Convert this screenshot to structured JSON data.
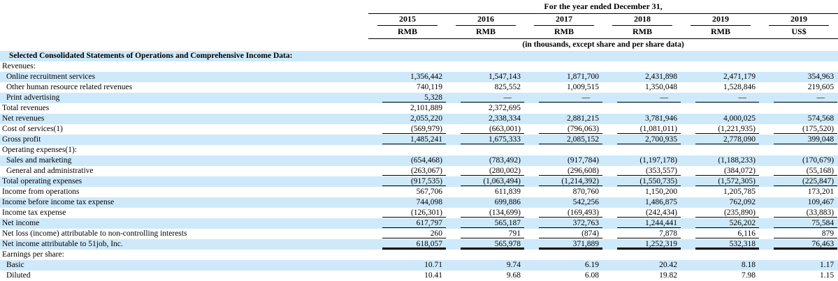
{
  "header": {
    "spanner": "For the year ended December 31,",
    "note": "(in thousands, except share and per share data)",
    "years": [
      "2015",
      "2016",
      "2017",
      "2018",
      "2019",
      "2019"
    ],
    "currencies": [
      "RMB",
      "RMB",
      "RMB",
      "RMB",
      "RMB",
      "US$"
    ]
  },
  "colors": {
    "row_highlight": "#cee9fa",
    "rule": "#000000"
  },
  "rows": [
    {
      "label": "Selected Consolidated Statements of Operations and Comprehensive Income Data:",
      "section": true,
      "indent": 0,
      "hl": true,
      "rule": "none",
      "values": [
        "",
        "",
        "",
        "",
        "",
        ""
      ]
    },
    {
      "label": "Revenues:",
      "section": false,
      "indent": 0,
      "hl": false,
      "rule": "none",
      "values": [
        "",
        "",
        "",
        "",
        "",
        ""
      ]
    },
    {
      "label": "Online recruitment services",
      "section": false,
      "indent": 1,
      "hl": true,
      "rule": "none",
      "values": [
        "1,356,442",
        "1,547,143",
        "1,871,700",
        "2,431,898",
        "2,471,179",
        "354,963"
      ]
    },
    {
      "label": "Other human resource related revenues",
      "section": false,
      "indent": 1,
      "hl": false,
      "rule": "none",
      "values": [
        "740,119",
        "825,552",
        "1,009,515",
        "1,350,048",
        "1,528,846",
        "219,605"
      ]
    },
    {
      "label": "Print advertising",
      "section": false,
      "indent": 1,
      "hl": true,
      "rule": "single",
      "values": [
        "5,328",
        "—",
        "—",
        "—",
        "—",
        "—"
      ]
    },
    {
      "label": "Total revenues",
      "section": false,
      "indent": 0,
      "hl": false,
      "rule": "none",
      "values": [
        "2,101,889",
        "2,372,695",
        "",
        "",
        "",
        ""
      ]
    },
    {
      "label": "Net revenues",
      "section": false,
      "indent": 0,
      "hl": true,
      "rule": "none",
      "values": [
        "2,055,220",
        "2,338,334",
        "2,881,215",
        "3,781,946",
        "4,000,025",
        "574,568"
      ]
    },
    {
      "label": "Cost of services(1)",
      "section": false,
      "indent": 0,
      "hl": false,
      "rule": "single",
      "values": [
        "(569,979)",
        "(663,001)",
        "(796,063)",
        "(1,081,011)",
        "(1,221,935)",
        "(175,520)"
      ]
    },
    {
      "label": "Gross profit",
      "section": false,
      "indent": 0,
      "hl": true,
      "rule": "single",
      "values": [
        "1,485,241",
        "1,675,333",
        "2,085,152",
        "2,700,935",
        "2,778,090",
        "399,048"
      ]
    },
    {
      "label": "Operating expenses(1):",
      "section": false,
      "indent": 0,
      "hl": false,
      "rule": "none",
      "values": [
        "",
        "",
        "",
        "",
        "",
        ""
      ]
    },
    {
      "label": "Sales and marketing",
      "section": false,
      "indent": 1,
      "hl": true,
      "rule": "none",
      "values": [
        "(654,468)",
        "(783,492)",
        "(917,784)",
        "(1,197,178)",
        "(1,188,233)",
        "(170,679)"
      ]
    },
    {
      "label": "General and administrative",
      "section": false,
      "indent": 1,
      "hl": false,
      "rule": "single",
      "values": [
        "(263,067)",
        "(280,002)",
        "(296,608)",
        "(353,557)",
        "(384,072)",
        "(55,168)"
      ]
    },
    {
      "label": "Total operating expenses",
      "section": false,
      "indent": 0,
      "hl": true,
      "rule": "single",
      "values": [
        "(917,535)",
        "(1,063,494)",
        "(1,214,392)",
        "(1,550,735)",
        "(1,572,305)",
        "(225,847)"
      ]
    },
    {
      "label": "Income from operations",
      "section": false,
      "indent": 0,
      "hl": false,
      "rule": "none",
      "values": [
        "567,706",
        "611,839",
        "870,760",
        "1,150,200",
        "1,205,785",
        "173,201"
      ]
    },
    {
      "label": "Income before income tax expense",
      "section": false,
      "indent": 0,
      "hl": true,
      "rule": "none",
      "values": [
        "744,098",
        "699,886",
        "542,256",
        "1,486,875",
        "762,092",
        "109,467"
      ]
    },
    {
      "label": "Income tax expense",
      "section": false,
      "indent": 0,
      "hl": false,
      "rule": "single",
      "values": [
        "(126,301)",
        "(134,699)",
        "(169,493)",
        "(242,434)",
        "(235,890)",
        "(33,883)"
      ]
    },
    {
      "label": "Net income",
      "section": false,
      "indent": 0,
      "hl": true,
      "rule": "single",
      "values": [
        "617,797",
        "565,187",
        "372,763",
        "1,244,441",
        "526,202",
        "75,584"
      ]
    },
    {
      "label": "Net loss (income) attributable to non-controlling interests",
      "section": false,
      "indent": 0,
      "hl": false,
      "rule": "single",
      "values": [
        "260",
        "791",
        "(874)",
        "7,878",
        "6,116",
        "879"
      ]
    },
    {
      "label": "Net income attributable to 51job, Inc.",
      "section": false,
      "indent": 0,
      "hl": true,
      "rule": "thick",
      "values": [
        "618,057",
        "565,978",
        "371,889",
        "1,252,319",
        "532,318",
        "76,463"
      ]
    },
    {
      "label": "Earnings per share:",
      "section": false,
      "indent": 0,
      "hl": false,
      "rule": "none",
      "values": [
        "",
        "",
        "",
        "",
        "",
        ""
      ]
    },
    {
      "label": "Basic",
      "section": false,
      "indent": 1,
      "hl": true,
      "rule": "none",
      "values": [
        "10.71",
        "9.74",
        "6.19",
        "20.42",
        "8.18",
        "1.17"
      ]
    },
    {
      "label": "Diluted",
      "section": false,
      "indent": 1,
      "hl": false,
      "rule": "none",
      "values": [
        "10.41",
        "9.68",
        "6.08",
        "19.82",
        "7.98",
        "1.15"
      ]
    }
  ]
}
